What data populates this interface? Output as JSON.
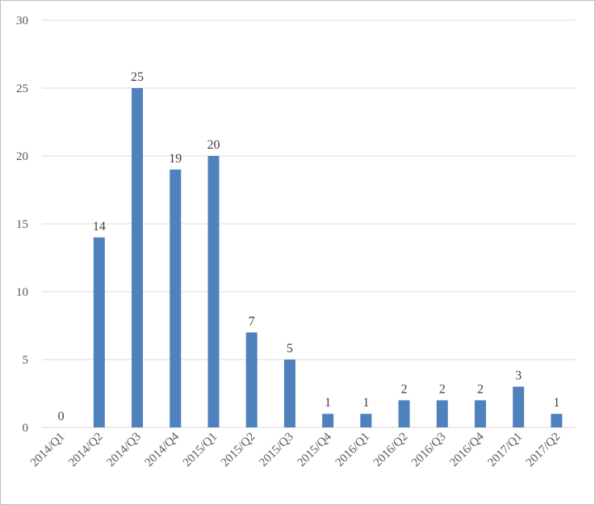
{
  "chart_data": {
    "type": "bar",
    "categories": [
      "2014/Q1",
      "2014/Q2",
      "2014/Q3",
      "2014/Q4",
      "2015/Q1",
      "2015/Q2",
      "2015/Q3",
      "2015/Q4",
      "2016/Q1",
      "2016/Q2",
      "2016/Q3",
      "2016/Q4",
      "2017/Q1",
      "2017/Q2"
    ],
    "values": [
      0,
      14,
      25,
      19,
      20,
      7,
      5,
      1,
      1,
      2,
      2,
      2,
      3,
      1
    ],
    "title": "",
    "xlabel": "",
    "ylabel": "",
    "ylim": [
      0,
      30
    ],
    "yticks": [
      0,
      5,
      10,
      15,
      20,
      25,
      30
    ],
    "grid": true,
    "data_labels": true,
    "bar_color": "#4f81bd"
  }
}
